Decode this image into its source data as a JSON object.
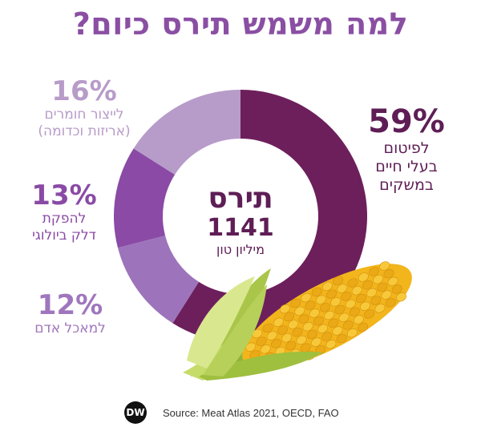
{
  "title": "למה משמש תירס כיום?",
  "center": {
    "title": "תירס",
    "value": "1141",
    "unit": "מיליון טון"
  },
  "chart_data": {
    "type": "pie",
    "title": "למה משמש תירס כיום?",
    "slices": [
      {
        "percent_label": "59%",
        "value": 59,
        "label_lines": [
          "לפיטום",
          "בעלי חיים",
          "במשקים"
        ],
        "color": "#6d1f5c"
      },
      {
        "percent_label": "12%",
        "value": 12,
        "label_lines": [
          "למאכל אדם"
        ],
        "color": "#9d74bb"
      },
      {
        "percent_label": "13%",
        "value": 13,
        "label_lines": [
          "להפקת",
          "דלק ביולוגי"
        ],
        "color": "#8a4aa5"
      },
      {
        "percent_label": "16%",
        "value": 16,
        "label_lines": [
          "לייצור חומרים",
          "(אריזות וכדומה)"
        ],
        "color": "#b79bc9"
      }
    ]
  },
  "footer": {
    "logo_text": "DW",
    "source": "Source: Meat Atlas 2021, OECD, FAO"
  },
  "illustration": {
    "icon": "corn-cob-icon"
  }
}
